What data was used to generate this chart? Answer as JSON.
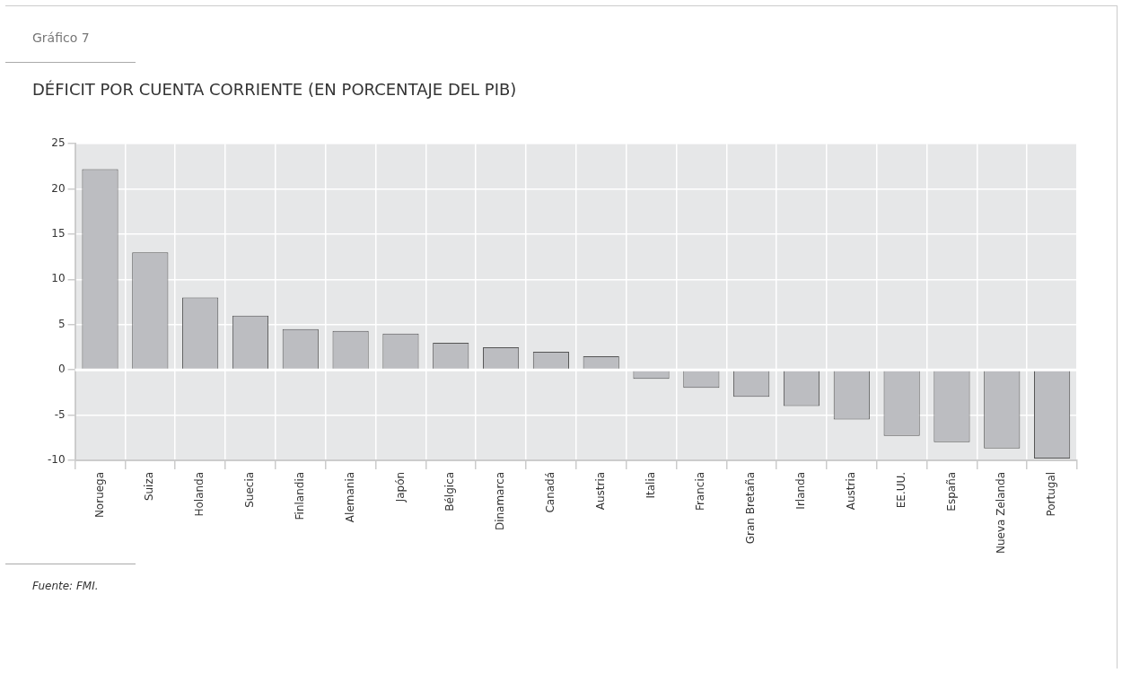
{
  "chart_data": {
    "type": "bar",
    "title": "DÉFICIT POR CUENTA CORRIENTE (EN PORCENTAJE DEL PIB)",
    "annotations": [
      "Gráfico 7",
      "Fuente: FMI."
    ],
    "categories": [
      "Noruega",
      "Suiza",
      "Holanda",
      "Suecia",
      "Finlandia",
      "Alemania",
      "Japón",
      "Bélgica",
      "Dinamarca",
      "Canadá",
      "Austria",
      "Italia",
      "Francia",
      "Gran Bretaña",
      "Irlanda",
      "Austria",
      "EE.UU.",
      "España",
      "Nueva Zelanda",
      "Portugal"
    ],
    "values": [
      22.2,
      13,
      8,
      6,
      4.5,
      4.3,
      4,
      3,
      2.5,
      2,
      1.5,
      -1,
      -2,
      -3,
      -4,
      -5.5,
      -7.3,
      -8,
      -8.7,
      -9.8
    ],
    "color": "#bcbdc1",
    "ylim": [
      -10,
      25
    ],
    "yticks": [
      -10,
      -5,
      0,
      5,
      10,
      15,
      20,
      25
    ],
    "grid": true,
    "legend": false
  }
}
